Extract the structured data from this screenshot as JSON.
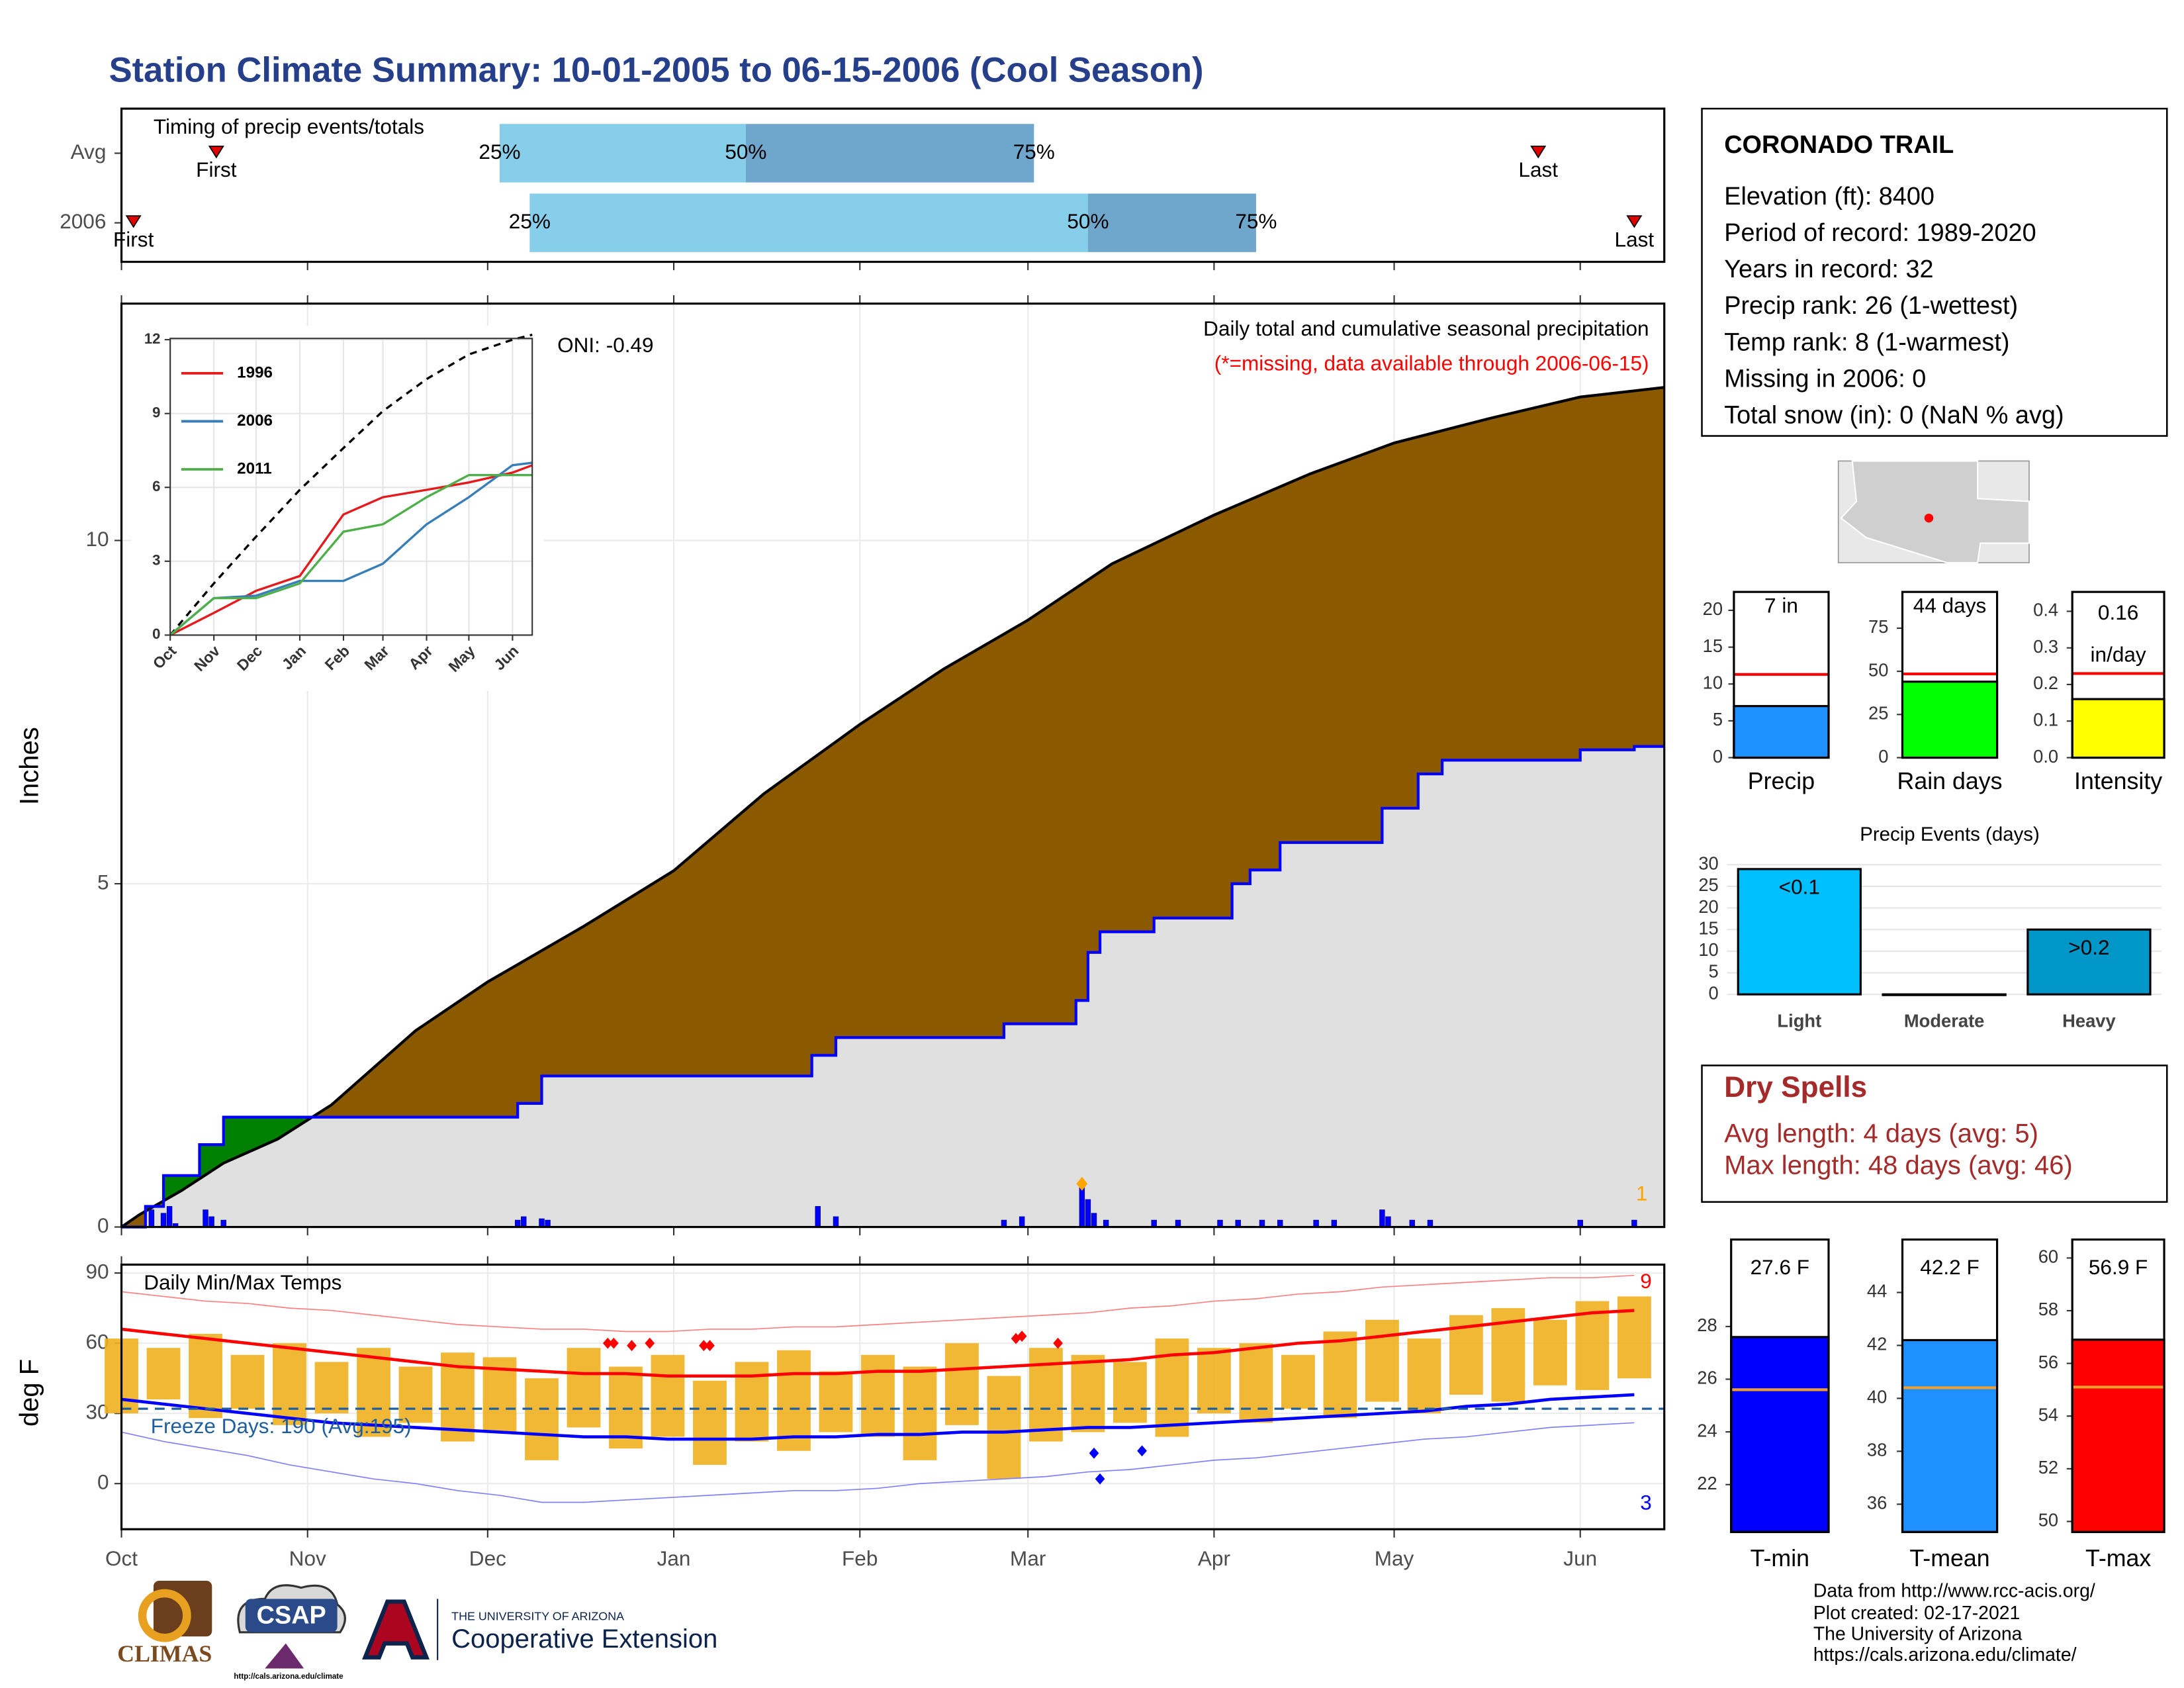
{
  "title": "Station Climate Summary: 10-01-2005 to 06-15-2006 (Cool Season)",
  "chart_data": [
    {
      "type": "timing",
      "title": "Timing of precip events/totals",
      "categories": [
        "Avg",
        "2006"
      ],
      "first": [
        15.8,
        2
      ],
      "q25": [
        63,
        68
      ],
      "q50": [
        104,
        161
      ],
      "q75": [
        152,
        189
      ],
      "last": [
        236,
        252
      ],
      "first_label": "First",
      "last_label": "Last",
      "quantile_labels": [
        "25%",
        "50%",
        "75%"
      ],
      "colors": [
        "#87ceeb",
        "#6fa6cc"
      ],
      "marker_color": "#e00000",
      "xlim": [
        0,
        257
      ]
    },
    {
      "type": "cumulative",
      "ylabel": "Inches",
      "xlim": [
        0,
        257
      ],
      "ylim": [
        0,
        13.45
      ],
      "yticks": [
        0,
        5,
        10
      ],
      "grid": true,
      "title": "Daily total and cumulative seasonal precipitation",
      "note": "(*=missing, data available through 2006-06-15)",
      "oni": "ONI: -0.49",
      "peak_count": 1,
      "peak_color": "#ffa500",
      "avg_cumulative": {
        "color": "#000000",
        "fill": "#8b5a00",
        "x": [
          0,
          3,
          10,
          17,
          26,
          35,
          49,
          61,
          77,
          92,
          107,
          123,
          137,
          151,
          165,
          182,
          198,
          212,
          228,
          243,
          257
        ],
        "values": [
          0,
          0.18,
          0.53,
          0.93,
          1.28,
          1.78,
          2.86,
          3.57,
          4.38,
          5.19,
          6.31,
          7.32,
          8.13,
          8.84,
          9.66,
          10.37,
          10.97,
          11.42,
          11.78,
          12.09,
          12.23
        ]
      },
      "cumulative_2006": {
        "color": "#0000ff",
        "fill": "#e0e0e0",
        "excess_fill": "#008000",
        "x": [
          0,
          4,
          4,
          7,
          7,
          13,
          13,
          17,
          17,
          66,
          66,
          70,
          70,
          115,
          115,
          119,
          119,
          147,
          147,
          159,
          159,
          161,
          161,
          163,
          163,
          172,
          172,
          185,
          185,
          188,
          188,
          193,
          193,
          210,
          210,
          216,
          216,
          220,
          220,
          243,
          243,
          252,
          252,
          257
        ],
        "values": [
          0,
          0,
          0.3,
          0.3,
          0.75,
          0.75,
          1.2,
          1.2,
          1.6,
          1.6,
          1.8,
          1.8,
          2.2,
          2.2,
          2.5,
          2.5,
          2.76,
          2.76,
          2.96,
          2.96,
          3.3,
          3.3,
          4.0,
          4.0,
          4.3,
          4.3,
          4.5,
          4.5,
          5.0,
          5.0,
          5.2,
          5.2,
          5.6,
          5.6,
          6.1,
          6.1,
          6.6,
          6.6,
          6.8,
          6.8,
          6.95,
          6.95,
          7.0,
          7.0
        ]
      },
      "daily": {
        "color": "#0000ff",
        "x": [
          5,
          7,
          8,
          9,
          14,
          15,
          17,
          66,
          67,
          70,
          71,
          116,
          119,
          147,
          150,
          160,
          161,
          162,
          164,
          172,
          176,
          183,
          186,
          190,
          193,
          199,
          202,
          210,
          211,
          215,
          218,
          243,
          252
        ],
        "values": [
          0.25,
          0.2,
          0.3,
          0.05,
          0.25,
          0.15,
          0.1,
          0.1,
          0.15,
          0.12,
          0.1,
          0.3,
          0.15,
          0.1,
          0.15,
          0.63,
          0.4,
          0.2,
          0.1,
          0.1,
          0.1,
          0.1,
          0.1,
          0.1,
          0.1,
          0.1,
          0.1,
          0.25,
          0.15,
          0.1,
          0.1,
          0.1,
          0.1
        ]
      }
    },
    {
      "type": "line",
      "xlim": [
        0,
        257
      ],
      "ylim": [
        0,
        12.05
      ],
      "yticks": [
        0,
        3,
        6,
        9,
        12
      ],
      "xticks": [
        {
          "value": 0,
          "label": "Oct"
        },
        {
          "value": 31,
          "label": "Nov"
        },
        {
          "value": 61,
          "label": "Dec"
        },
        {
          "value": 92,
          "label": "Jan"
        },
        {
          "value": 123,
          "label": "Feb"
        },
        {
          "value": 151,
          "label": "Mar"
        },
        {
          "value": 182,
          "label": "Apr"
        },
        {
          "value": 212,
          "label": "May"
        },
        {
          "value": 243,
          "label": "Jun"
        }
      ],
      "x": [
        0,
        31,
        61,
        92,
        123,
        151,
        182,
        212,
        243,
        257
      ],
      "average": {
        "color": "#000000",
        "values": [
          0,
          2.1,
          4.0,
          5.9,
          7.6,
          9.1,
          10.4,
          11.4,
          12.0,
          12.2
        ]
      },
      "series": [
        {
          "name": "1996",
          "color": "#e41a1c",
          "values": [
            0,
            0.9,
            1.8,
            2.4,
            4.9,
            5.6,
            5.9,
            6.2,
            6.6,
            6.9
          ]
        },
        {
          "name": "2006",
          "color": "#377eb8",
          "values": [
            0,
            1.5,
            1.6,
            2.2,
            2.2,
            2.9,
            4.5,
            5.6,
            6.9,
            7.0
          ]
        },
        {
          "name": "2011",
          "color": "#4daf4a",
          "values": [
            0,
            1.5,
            1.5,
            2.1,
            4.2,
            4.5,
            5.6,
            6.5,
            6.5,
            6.5
          ]
        }
      ]
    },
    {
      "type": "temperature",
      "title": "Daily Min/Max Temps",
      "ylabel": "deg F",
      "xlim": [
        0,
        257
      ],
      "ylim": [
        -19.5,
        93.6
      ],
      "yticks": [
        0,
        30,
        60,
        90
      ],
      "grid": true,
      "xticks": [
        {
          "value": 0,
          "label": "Oct"
        },
        {
          "value": 31,
          "label": "Nov"
        },
        {
          "value": 61,
          "label": "Dec"
        },
        {
          "value": 92,
          "label": "Jan"
        },
        {
          "value": 123,
          "label": "Feb"
        },
        {
          "value": 151,
          "label": "Mar"
        },
        {
          "value": 182,
          "label": "Apr"
        },
        {
          "value": 212,
          "label": "May"
        },
        {
          "value": 243,
          "label": "Jun"
        }
      ],
      "freeze_threshold": 32,
      "freeze_label": "Freeze Days: 190 (Avg:195)",
      "freeze_color": "#1f5f9f",
      "record_high_count": 9,
      "record_low_count": 3,
      "x": [
        0,
        7,
        14,
        21,
        28,
        35,
        42,
        49,
        56,
        63,
        70,
        77,
        84,
        91,
        98,
        105,
        112,
        119,
        126,
        133,
        140,
        147,
        154,
        161,
        168,
        175,
        182,
        189,
        196,
        203,
        210,
        217,
        224,
        231,
        238,
        245,
        252
      ],
      "obs_color": "#f0b020",
      "obs_max": [
        62,
        58,
        64,
        55,
        60,
        52,
        58,
        50,
        56,
        54,
        45,
        58,
        50,
        55,
        44,
        52,
        57,
        48,
        55,
        50,
        60,
        46,
        58,
        55,
        52,
        62,
        58,
        60,
        55,
        65,
        70,
        62,
        72,
        75,
        70,
        78,
        80
      ],
      "obs_min": [
        30,
        36,
        28,
        32,
        25,
        30,
        20,
        26,
        18,
        22,
        10,
        24,
        15,
        20,
        8,
        18,
        14,
        22,
        20,
        10,
        25,
        2,
        18,
        22,
        26,
        20,
        30,
        26,
        32,
        28,
        35,
        30,
        38,
        35,
        42,
        40,
        45
      ],
      "avg_max": {
        "color": "#ff0000",
        "values": [
          66,
          64,
          62,
          60,
          58,
          56,
          54,
          52,
          50,
          49,
          48,
          47,
          47,
          46,
          46,
          46,
          47,
          47,
          48,
          48,
          49,
          50,
          51,
          52,
          53,
          55,
          56,
          58,
          60,
          61,
          63,
          65,
          67,
          69,
          71,
          73,
          74
        ]
      },
      "avg_min": {
        "color": "#0000ff",
        "values": [
          36,
          34,
          32,
          30,
          28,
          26,
          25,
          24,
          23,
          22,
          21,
          20,
          20,
          19,
          19,
          19,
          20,
          20,
          21,
          21,
          22,
          22,
          23,
          24,
          24,
          25,
          26,
          27,
          28,
          29,
          30,
          31,
          33,
          34,
          36,
          37,
          38
        ]
      },
      "record_max": {
        "color": "#ff8080",
        "values": [
          82,
          80,
          78,
          77,
          75,
          74,
          72,
          70,
          68,
          67,
          66,
          66,
          65,
          65,
          66,
          66,
          67,
          67,
          68,
          69,
          70,
          71,
          72,
          73,
          75,
          76,
          78,
          79,
          81,
          82,
          84,
          85,
          86,
          87,
          88,
          88,
          89
        ]
      },
      "record_min": {
        "color": "#8080ff",
        "values": [
          22,
          18,
          15,
          12,
          8,
          5,
          2,
          0,
          -3,
          -5,
          -8,
          -8,
          -7,
          -6,
          -5,
          -4,
          -3,
          -3,
          -2,
          0,
          1,
          2,
          3,
          5,
          6,
          8,
          10,
          11,
          13,
          15,
          17,
          19,
          20,
          22,
          24,
          25,
          26
        ]
      },
      "new_highs": {
        "color": "#ff0000",
        "x": [
          81,
          82,
          85,
          88,
          97,
          98,
          149,
          150,
          156
        ],
        "values": [
          60,
          60,
          59,
          60,
          59,
          59,
          62,
          63,
          60
        ]
      },
      "new_lows": {
        "color": "#0000ff",
        "x": [
          162,
          163,
          170
        ],
        "values": [
          13,
          2,
          14
        ]
      }
    },
    {
      "type": "bar",
      "categories": [
        "Precip"
      ],
      "values": [
        7
      ],
      "value_labels": [
        "7 in"
      ],
      "avg": 11.3,
      "avg_color": "#ff0000",
      "color": "#1e90ff",
      "ylim": [
        0,
        22.5
      ],
      "yticks": [
        0,
        5,
        10,
        15,
        20
      ]
    },
    {
      "type": "bar",
      "categories": [
        "Rain days"
      ],
      "values": [
        44
      ],
      "value_labels": [
        "44 days"
      ],
      "avg": 48.5,
      "avg_color": "#ff0000",
      "color": "#00ff00",
      "ylim": [
        0,
        96
      ],
      "yticks": [
        0,
        25,
        50,
        75
      ]
    },
    {
      "type": "bar",
      "categories": [
        "Intensity"
      ],
      "values": [
        0.16
      ],
      "value_labels": [
        "0.16"
      ],
      "unit_label": "in/day",
      "avg": 0.23,
      "avg_color": "#ff0000",
      "color": "#ffff00",
      "ylim": [
        0,
        0.453
      ],
      "yticks": [
        {
          "value": 0,
          "label": "0.0"
        },
        0.1,
        0.2,
        0.3,
        0.4
      ]
    },
    {
      "type": "events",
      "title": "Precip Events (days)",
      "categories": [
        "Light",
        "Moderate",
        "Heavy"
      ],
      "values": [
        29,
        0,
        15
      ],
      "bar_labels": [
        "<0.1",
        null,
        ">0.2"
      ],
      "colors": [
        "#00bfff",
        "#cccccc",
        "#0096c8"
      ],
      "ylim": [
        -1.3,
        31.9
      ],
      "yticks": [
        0,
        5,
        10,
        15,
        20,
        25,
        30
      ]
    },
    {
      "type": "bar",
      "categories": [
        "T-min"
      ],
      "values": [
        27.6
      ],
      "value_labels": [
        "27.6 F"
      ],
      "avg": 25.6,
      "avg_color": "#f0a030",
      "color": "#0000ff",
      "ylim": [
        20.2,
        31.3
      ],
      "yticks": [
        22,
        24,
        26,
        28
      ]
    },
    {
      "type": "bar",
      "categories": [
        "T-mean"
      ],
      "values": [
        42.2
      ],
      "value_labels": [
        "42.2 F"
      ],
      "avg": 40.4,
      "avg_color": "#f0a030",
      "color": "#1e90ff",
      "ylim": [
        34.95,
        46.0
      ],
      "yticks": [
        36,
        38,
        40,
        42,
        44
      ]
    },
    {
      "type": "bar",
      "categories": [
        "T-max"
      ],
      "values": [
        56.9
      ],
      "value_labels": [
        "56.9 F"
      ],
      "avg": 55.1,
      "avg_color": "#f0a030",
      "color": "#ff0000",
      "ylim": [
        49.6,
        60.7
      ],
      "yticks": [
        50,
        52,
        54,
        56,
        58,
        60
      ]
    }
  ],
  "station": {
    "name": "CORONADO TRAIL",
    "lines": [
      "Elevation (ft): 8400",
      "Period of record: 1989-2020",
      "Years in record: 32",
      "Precip rank: 26 (1-wettest)",
      "Temp rank: 8 (1-warmest)",
      "Missing in 2006: 0",
      "Total snow (in): 0 (NaN % avg)"
    ]
  },
  "dry_spells": {
    "title": "Dry Spells",
    "lines": [
      "Avg length: 4 days (avg: 5)",
      "Max length: 48 days (avg: 46)"
    ]
  },
  "footer": [
    "Data from http://www.rcc-acis.org/",
    "Plot created: 02-17-2021",
    "The University of Arizona",
    "https://cals.arizona.edu/climate/"
  ],
  "logos": {
    "climas": "CLIMAS",
    "csap": "CSAP",
    "csap_url": "http://cals.arizona.edu/climate",
    "university": "THE UNIVERSITY OF ARIZONA",
    "extension": "Cooperative Extension"
  }
}
